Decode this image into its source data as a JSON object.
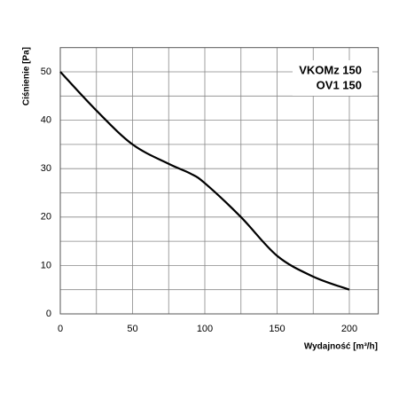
{
  "chart_data": {
    "type": "line",
    "x_label": "Wydajność [m³/h]",
    "y_label": "Ciśnienie [Pa]",
    "annotations": [
      "VKOMz 150",
      "OV1 150"
    ],
    "x": [
      0,
      25,
      50,
      75,
      90,
      100,
      125,
      150,
      175,
      200
    ],
    "series": [
      {
        "color": "#000000",
        "values": [
          50,
          42,
          35,
          31,
          29,
          27,
          20,
          12,
          7.7,
          5
        ]
      }
    ],
    "xlim": [
      0,
      220
    ],
    "ylim": [
      0,
      55
    ],
    "xticks": [
      0,
      50,
      100,
      150,
      200
    ],
    "yticks": [
      0,
      10,
      20,
      30,
      40,
      50
    ],
    "xgrid": [
      25,
      75,
      125,
      175
    ],
    "ygrid": [
      5,
      15,
      25,
      35,
      45
    ],
    "grid": true
  }
}
